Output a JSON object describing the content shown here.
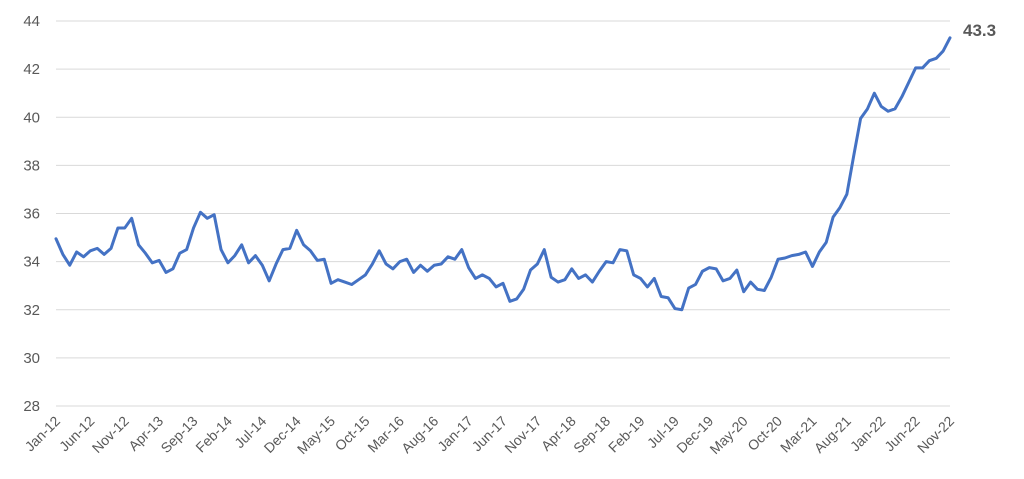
{
  "chart_data": {
    "type": "line",
    "title": "",
    "xlabel": "",
    "ylabel": "",
    "ylim": [
      28,
      44
    ],
    "yticks": [
      "28",
      "30",
      "32",
      "34",
      "36",
      "38",
      "40",
      "42",
      "44"
    ],
    "xtick_labels": [
      "Jan-12",
      "Jun-12",
      "Nov-12",
      "Apr-13",
      "Sep-13",
      "Feb-14",
      "Jul-14",
      "Dec-14",
      "May-15",
      "Oct-15",
      "Mar-16",
      "Aug-16",
      "Jan-17",
      "Jun-17",
      "Nov-17",
      "Apr-18",
      "Sep-18",
      "Feb-19",
      "Jul-19",
      "Dec-19",
      "May-20",
      "Oct-20",
      "Mar-21",
      "Aug-21",
      "Jan-22",
      "Jun-22",
      "Nov-22"
    ],
    "grid": true,
    "legend": "none",
    "end_label": "43.3",
    "series": [
      {
        "color": "#4472c4",
        "x_start": "Jan-12",
        "x_end": "Nov-22",
        "values": [
          34.95,
          34.3,
          33.85,
          34.4,
          34.2,
          34.45,
          34.55,
          34.3,
          34.55,
          35.4,
          35.4,
          35.8,
          34.7,
          34.35,
          33.95,
          34.05,
          33.55,
          33.7,
          34.35,
          34.5,
          35.4,
          36.05,
          35.8,
          35.95,
          34.5,
          33.95,
          34.25,
          34.7,
          33.95,
          34.25,
          33.85,
          33.2,
          33.9,
          34.5,
          34.55,
          35.3,
          34.7,
          34.45,
          34.05,
          34.1,
          33.1,
          33.25,
          33.15,
          33.05,
          33.25,
          33.45,
          33.9,
          34.45,
          33.9,
          33.7,
          34.0,
          34.1,
          33.55,
          33.85,
          33.6,
          33.85,
          33.9,
          34.2,
          34.1,
          34.5,
          33.75,
          33.3,
          33.45,
          33.3,
          32.95,
          33.1,
          32.35,
          32.45,
          32.85,
          33.65,
          33.9,
          34.5,
          33.35,
          33.15,
          33.25,
          33.7,
          33.3,
          33.45,
          33.15,
          33.6,
          34.0,
          33.95,
          34.5,
          34.45,
          33.45,
          33.3,
          32.95,
          33.3,
          32.55,
          32.5,
          32.05,
          32.0,
          32.9,
          33.05,
          33.6,
          33.75,
          33.7,
          33.2,
          33.3,
          33.65,
          32.75,
          33.15,
          32.85,
          32.8,
          33.35,
          34.1,
          34.15,
          34.25,
          34.3,
          34.4,
          33.8,
          34.4,
          34.8,
          35.85,
          36.25,
          36.8,
          38.4,
          39.95,
          40.35,
          41.0,
          40.45,
          40.25,
          40.35,
          40.85,
          41.45,
          42.05,
          42.05,
          42.35,
          42.45,
          42.75,
          43.3
        ]
      }
    ]
  }
}
